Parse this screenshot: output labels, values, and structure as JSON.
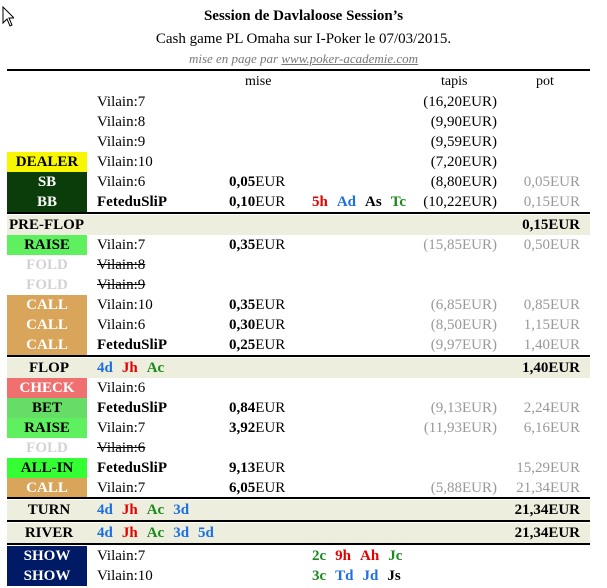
{
  "header": {
    "title": "Session de Davlaloose Session’s",
    "subtitle": "Cash game PL Omaha sur I-Poker le 07/03/2015.",
    "credit_prefix": "mise en page par ",
    "credit_link": "www.poker-academie.com"
  },
  "columns": {
    "mise": "mise",
    "tapis": "tapis",
    "pot": "pot"
  },
  "colors": {
    "dealer": "#f7f700",
    "blind": "#0b3d0b",
    "action_call": "#d9a55b",
    "raise": "#5ff05f",
    "check": "#f07070",
    "bet": "#66dd66",
    "allin": "#33ff33",
    "show": "#001a66",
    "section": "#eeeede"
  },
  "seats": [
    {
      "badge": "",
      "name": "Vilain:7",
      "mise": "",
      "cards": [],
      "tapis": "(16,20EUR)",
      "pot": ""
    },
    {
      "badge": "",
      "name": "Vilain:8",
      "mise": "",
      "cards": [],
      "tapis": "(9,90EUR)",
      "pot": ""
    },
    {
      "badge": "",
      "name": "Vilain:9",
      "mise": "",
      "cards": [],
      "tapis": "(9,59EUR)",
      "pot": ""
    },
    {
      "badge": "DEALER",
      "name": "Vilain:10",
      "mise": "",
      "cards": [],
      "tapis": "(7,20EUR)",
      "pot": ""
    },
    {
      "badge": "SB",
      "name": "Vilain:6",
      "mise_num": "0,05",
      "mise_unit": "EUR",
      "cards": [],
      "tapis": "(8,80EUR)",
      "pot": "0,05EUR"
    },
    {
      "badge": "BB",
      "name": "FeteduSliP",
      "mise_num": "0,10",
      "mise_unit": "EUR",
      "cards": [
        "5h",
        "Ad",
        "As",
        "Tc"
      ],
      "tapis": "(10,22EUR)",
      "pot": "0,15EUR"
    }
  ],
  "preflop": {
    "label": "PRE-FLOP",
    "pot": "0,15EUR",
    "actions": [
      {
        "badge": "RAISE",
        "name": "Vilain:7",
        "mise_num": "0,35",
        "mise_unit": "EUR",
        "tapis": "(15,85EUR)",
        "pot": "0,50EUR"
      },
      {
        "badge": "FOLD",
        "name": "Vilain:8"
      },
      {
        "badge": "FOLD",
        "name": "Vilain:9"
      },
      {
        "badge": "CALL",
        "name": "Vilain:10",
        "mise_num": "0,35",
        "mise_unit": "EUR",
        "tapis": "(6,85EUR)",
        "pot": "0,85EUR"
      },
      {
        "badge": "CALL",
        "name": "Vilain:6",
        "mise_num": "0,30",
        "mise_unit": "EUR",
        "tapis": "(8,50EUR)",
        "pot": "1,15EUR"
      },
      {
        "badge": "CALL",
        "name": "FeteduSliP",
        "mise_num": "0,25",
        "mise_unit": "EUR",
        "tapis": "(9,97EUR)",
        "pot": "1,40EUR"
      }
    ]
  },
  "flop": {
    "label": "FLOP",
    "cards": [
      "4d",
      "Jh",
      "Ac"
    ],
    "pot": "1,40EUR",
    "actions": [
      {
        "badge": "CHECK",
        "name": "Vilain:6"
      },
      {
        "badge": "BET",
        "name": "FeteduSliP",
        "mise_num": "0,84",
        "mise_unit": "EUR",
        "tapis": "(9,13EUR)",
        "pot": "2,24EUR"
      },
      {
        "badge": "RAISE",
        "name": "Vilain:7",
        "mise_num": "3,92",
        "mise_unit": "EUR",
        "tapis": "(11,93EUR)",
        "pot": "6,16EUR"
      },
      {
        "badge": "FOLD",
        "name": "Vilain:6"
      },
      {
        "badge": "ALL-IN",
        "name": "FeteduSliP",
        "mise_num": "9,13",
        "mise_unit": "EUR",
        "tapis": "",
        "pot": "15,29EUR"
      },
      {
        "badge": "CALL",
        "name": "Vilain:7",
        "mise_num": "6,05",
        "mise_unit": "EUR",
        "tapis": "(5,88EUR)",
        "pot": "21,34EUR"
      }
    ]
  },
  "turn": {
    "label": "TURN",
    "cards": [
      "4d",
      "Jh",
      "Ac",
      "3d"
    ],
    "pot": "21,34EUR"
  },
  "river": {
    "label": "RIVER",
    "cards": [
      "4d",
      "Jh",
      "Ac",
      "3d",
      "5d"
    ],
    "pot": "21,34EUR"
  },
  "showdown": [
    {
      "badge": "SHOW",
      "name": "Vilain:7",
      "cards": [
        "2c",
        "9h",
        "Ah",
        "Jc"
      ]
    },
    {
      "badge": "SHOW",
      "name": "Vilain:10",
      "cards": [
        "3c",
        "Td",
        "Jd",
        "Js"
      ]
    }
  ]
}
